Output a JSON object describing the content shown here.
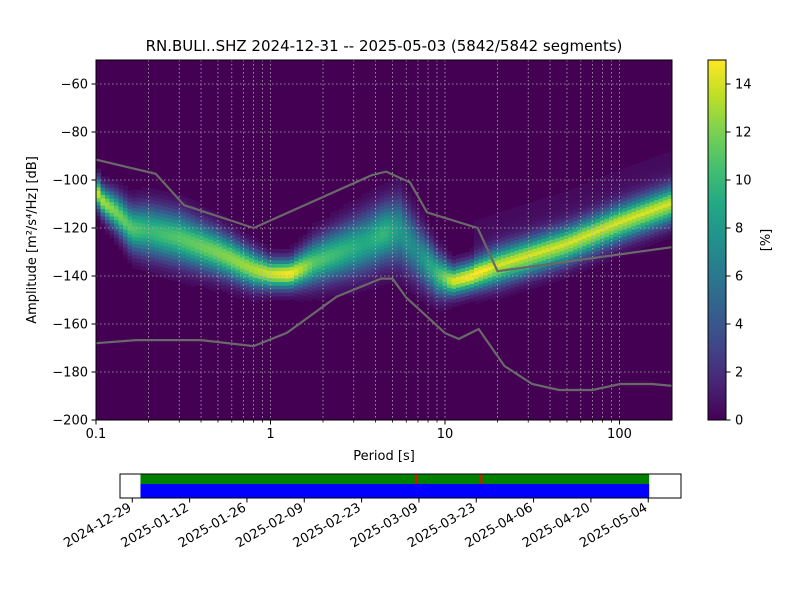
{
  "chart_data": {
    "type": "heatmap",
    "title": "RN.BULI..SHZ   2024-12-31 -- 2025-05-03  (5842/5842 segments)",
    "xlabel": "Period [s]",
    "ylabel": "Amplitude [m²/s⁴/Hz] [dB]",
    "x_scale": "log",
    "xlim": [
      0.1,
      200
    ],
    "ylim": [
      -200,
      -50
    ],
    "grid": true,
    "x_ticks": [
      {
        "value": 0.1,
        "label": "0.1"
      },
      {
        "value": 1,
        "label": "1"
      },
      {
        "value": 10,
        "label": "10"
      },
      {
        "value": 100,
        "label": "100"
      }
    ],
    "y_ticks": [
      {
        "value": -60,
        "label": "−60"
      },
      {
        "value": -80,
        "label": "−80"
      },
      {
        "value": -100,
        "label": "−100"
      },
      {
        "value": -120,
        "label": "−120"
      },
      {
        "value": -140,
        "label": "−140"
      },
      {
        "value": -160,
        "label": "−160"
      },
      {
        "value": -180,
        "label": "−180"
      },
      {
        "value": -200,
        "label": "−200"
      }
    ],
    "colorbar": {
      "label": "[%]",
      "range": [
        0,
        15
      ],
      "ticks": [
        {
          "value": 0,
          "label": "0"
        },
        {
          "value": 2,
          "label": "2"
        },
        {
          "value": 4,
          "label": "4"
        },
        {
          "value": 6,
          "label": "6"
        },
        {
          "value": 8,
          "label": "8"
        },
        {
          "value": 10,
          "label": "10"
        },
        {
          "value": 12,
          "label": "12"
        },
        {
          "value": 14,
          "label": "14"
        }
      ],
      "colormap": [
        "#440154",
        "#482475",
        "#414487",
        "#355f8d",
        "#2a788e",
        "#21918c",
        "#22a884",
        "#44bf70",
        "#7ad151",
        "#bddf26",
        "#fde725"
      ]
    },
    "psd_mode": {
      "period": [
        0.1,
        0.11,
        0.13,
        0.16,
        0.2,
        0.3,
        0.5,
        0.8,
        1.0,
        1.3,
        1.8,
        2.5,
        3.5,
        4.5,
        5.5,
        7,
        9,
        11,
        14,
        20,
        30,
        50,
        100,
        200
      ],
      "amplitude": [
        -104,
        -109,
        -113,
        -120,
        -121,
        -124,
        -130,
        -137,
        -139,
        -139,
        -134,
        -130,
        -126,
        -122,
        -121,
        -130,
        -139,
        -142,
        -140,
        -136,
        -132,
        -127,
        -118,
        -110
      ],
      "peak_percent": [
        14,
        13,
        12,
        11,
        10,
        11,
        12,
        13,
        14,
        15,
        11,
        10,
        9,
        10,
        8,
        7,
        10,
        14,
        15,
        13,
        13,
        13,
        13,
        13
      ],
      "spread_db": [
        4,
        4,
        5,
        6,
        7,
        7,
        6,
        5,
        4,
        4,
        6,
        7,
        8,
        8,
        9,
        8,
        6,
        4,
        4,
        5,
        5,
        5,
        5,
        5
      ]
    },
    "reference_curves": {
      "color": "#696969",
      "high_noise_model": {
        "period": [
          0.1,
          0.22,
          0.32,
          0.8,
          3.8,
          4.6,
          6.3,
          7.9,
          15.4,
          20,
          200
        ],
        "amplitude": [
          -91.5,
          -97.4,
          -110.5,
          -120,
          -98,
          -96.5,
          -101,
          -113.5,
          -120,
          -138,
          -128
        ]
      },
      "low_noise_model": {
        "period": [
          0.1,
          0.17,
          0.4,
          0.8,
          1.24,
          2.4,
          4.3,
          5.0,
          6.0,
          10,
          12,
          15.6,
          21.9,
          31.6,
          45,
          70,
          101,
          154,
          200
        ],
        "amplitude": [
          -168,
          -166.7,
          -166.7,
          -169.2,
          -163.7,
          -148.6,
          -141.1,
          -141.1,
          -149,
          -163.8,
          -166.2,
          -162.1,
          -177.5,
          -185,
          -187.5,
          -187.5,
          -185,
          -185,
          -185.8
        ]
      }
    },
    "time_axis": {
      "start": "2024-12-31",
      "end": "2025-05-03",
      "view_start": "2024-12-26",
      "view_end": "2025-05-12",
      "tick_labels": [
        "2024-12-29",
        "2025-01-12",
        "2025-01-26",
        "2025-02-09",
        "2025-02-23",
        "2025-03-09",
        "2025-03-23",
        "2025-04-06",
        "2025-04-20",
        "2025-05-04"
      ],
      "data_color": "#0000ff",
      "used_color": "#008000",
      "gap_color": "#ff0000",
      "gaps": [
        "2025-03-08",
        "2025-03-24"
      ]
    }
  }
}
